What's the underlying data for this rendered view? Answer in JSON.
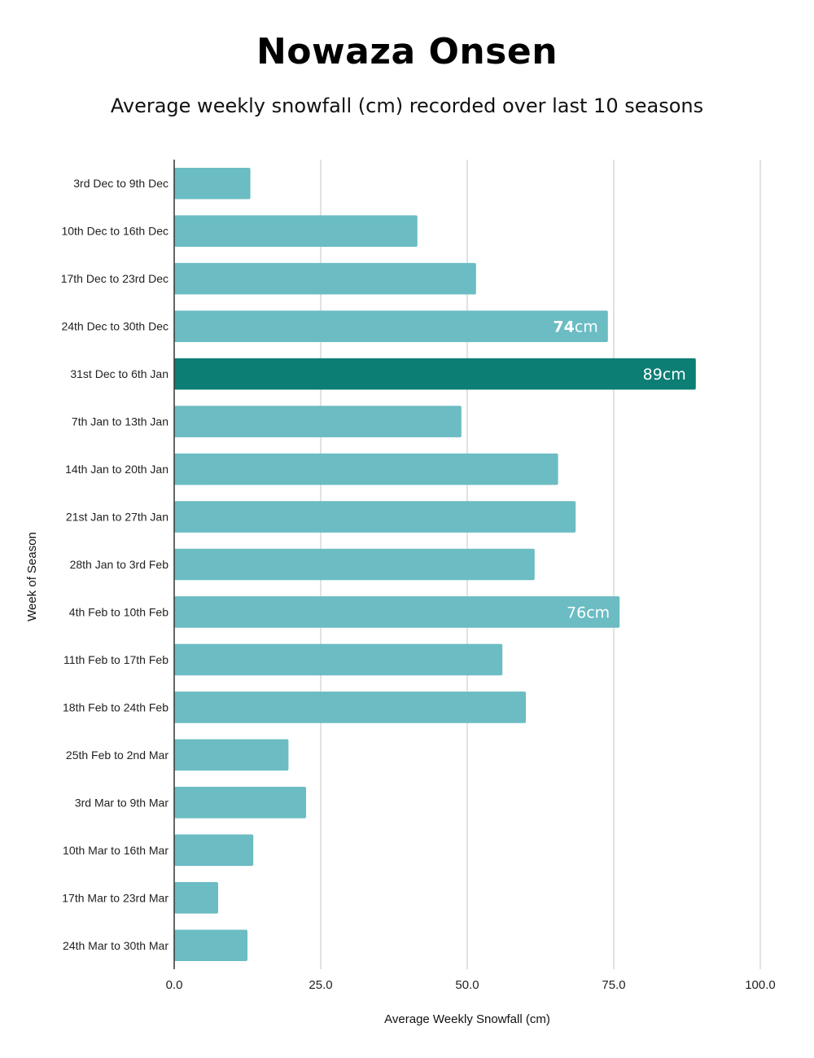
{
  "chart_data": {
    "type": "bar",
    "orientation": "horizontal",
    "title": "Nowaza Onsen",
    "subtitle": "Average weekly snowfall (cm) recorded over last 10 seasons",
    "xlabel": "Average Weekly Snowfall (cm)",
    "ylabel": "Week of Season",
    "xlim": [
      0,
      100
    ],
    "xticks": [
      "0.0",
      "25.0",
      "50.0",
      "75.0",
      "100.0"
    ],
    "grid": true,
    "categories": [
      "3rd Dec to 9th Dec",
      "10th Dec to 16th Dec",
      "17th Dec to 23rd Dec",
      "24th Dec to  30th Dec",
      "31st Dec to 6th Jan",
      "7th Jan to 13th Jan",
      "14th Jan to 20th Jan",
      "21st Jan to 27th Jan",
      "28th Jan to 3rd Feb",
      "4th Feb to 10th Feb",
      "11th Feb to 17th Feb",
      "18th Feb to 24th Feb",
      "25th Feb to 2nd Mar",
      "3rd Mar to 9th Mar",
      "10th Mar to 16th Mar",
      "17th Mar to 23rd Mar",
      "24th Mar to 30th Mar"
    ],
    "values": [
      13,
      41.5,
      51.5,
      74,
      89,
      49,
      65.5,
      68.5,
      61.5,
      76,
      56,
      60,
      19.5,
      22.5,
      13.5,
      7.5,
      12.5
    ],
    "highlight_index": 4,
    "colors": {
      "bar": "#6bbcc3",
      "highlight": "#0c7e74",
      "grid": "#d9d9d9",
      "axis": "#333333"
    },
    "data_labels": [
      {
        "index": 3,
        "number": "74",
        "unit": "cm"
      },
      {
        "index": 4,
        "number": "89",
        "unit": "cm"
      },
      {
        "index": 9,
        "number": "76",
        "unit": "cm"
      }
    ]
  }
}
